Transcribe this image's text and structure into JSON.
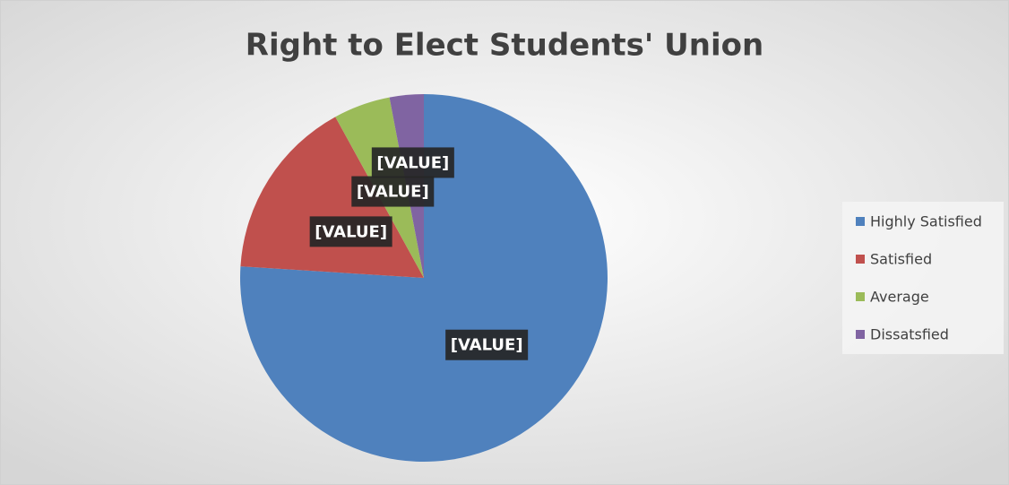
{
  "chart_data": {
    "type": "pie",
    "title": "Right to Elect Students' Union",
    "categories": [
      "Highly Satisfied",
      "Satisfied",
      "Average",
      "Dissatsfied"
    ],
    "values": [
      76,
      16,
      5,
      3
    ],
    "value_labels": [
      "[VALUE]",
      "[VALUE]",
      "[VALUE]",
      "[VALUE]"
    ],
    "colors": [
      "#4f81bd",
      "#c0504d",
      "#9bbb59",
      "#8064a2"
    ],
    "legend": "right"
  }
}
